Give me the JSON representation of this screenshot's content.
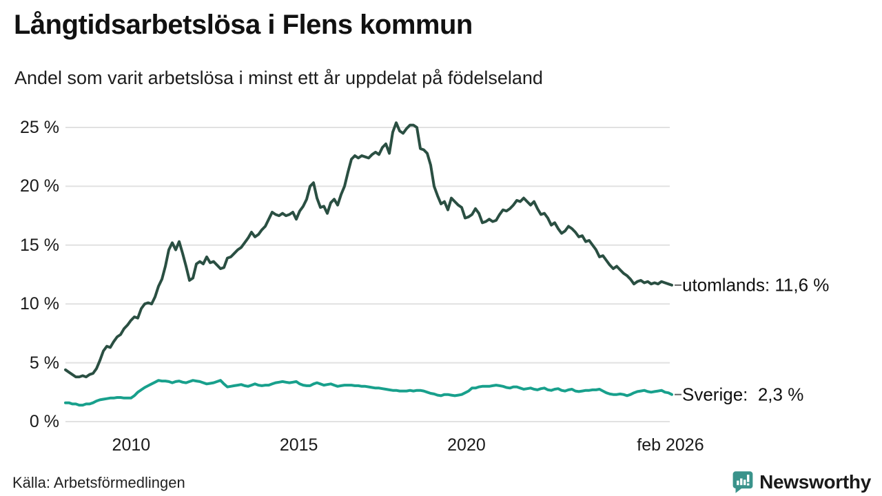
{
  "header": {
    "title": "Långtidsarbetslösa i Flens kommun",
    "subtitle": "Andel som varit arbetslösa i minst ett år uppdelat på födelseland"
  },
  "footer": {
    "source": "Källa: Arbetsförmedlingen",
    "brand_name": "Newsworthy",
    "brand_icon": "bar-chart-speech-bubble-icon",
    "brand_color": "#2F8D86"
  },
  "chart_data": {
    "type": "line",
    "title": "Långtidsarbetslösa i Flens kommun",
    "subtitle": "Andel som varit arbetslösa i minst ett år uppdelat på födelseland",
    "x_start": 2008.04,
    "x_end": 2026.125,
    "xlabel": "",
    "ylabel": "",
    "ylim": [
      0,
      25
    ],
    "grid": true,
    "grid_color": "#e1e1e1",
    "y_ticks": [
      {
        "value": 0,
        "label": "0 %"
      },
      {
        "value": 5,
        "label": "5 %"
      },
      {
        "value": 10,
        "label": "10 %"
      },
      {
        "value": 15,
        "label": "15 %"
      },
      {
        "value": 20,
        "label": "20 %"
      },
      {
        "value": 25,
        "label": "25 %"
      }
    ],
    "x_ticks": [
      {
        "year": 2010,
        "label": "2010"
      },
      {
        "year": 2015,
        "label": "2015"
      },
      {
        "year": 2020,
        "label": "2020"
      },
      {
        "year": 2026.083,
        "label": "feb 2026"
      }
    ],
    "legend_position": "right-end-labels",
    "series": [
      {
        "name": "utomlands",
        "label": "utomlands: 11,6 %",
        "last_value": 11.6,
        "color": "#2A4F42",
        "values": [
          4.4,
          4.2,
          4.0,
          3.8,
          3.8,
          3.9,
          3.8,
          4.0,
          4.1,
          4.5,
          5.2,
          6.0,
          6.4,
          6.3,
          6.8,
          7.2,
          7.4,
          7.9,
          8.2,
          8.6,
          8.9,
          8.8,
          9.6,
          10.0,
          10.1,
          10.0,
          10.6,
          11.5,
          12.1,
          13.2,
          14.6,
          15.2,
          14.6,
          15.3,
          14.3,
          13.2,
          12.0,
          12.2,
          13.4,
          13.6,
          13.4,
          14.0,
          13.5,
          13.6,
          13.3,
          13.0,
          13.1,
          13.9,
          14.0,
          14.3,
          14.6,
          14.8,
          15.2,
          15.6,
          16.1,
          15.7,
          15.9,
          16.3,
          16.6,
          17.2,
          17.8,
          17.6,
          17.5,
          17.7,
          17.5,
          17.6,
          17.8,
          17.2,
          17.9,
          18.3,
          18.9,
          20.0,
          20.3,
          19.0,
          18.2,
          18.3,
          17.7,
          18.6,
          18.9,
          18.4,
          19.3,
          20.0,
          21.2,
          22.3,
          22.6,
          22.4,
          22.6,
          22.5,
          22.4,
          22.7,
          22.9,
          22.7,
          23.3,
          23.6,
          22.8,
          24.6,
          25.4,
          24.7,
          24.5,
          24.9,
          25.2,
          25.2,
          25.0,
          23.2,
          23.1,
          22.8,
          21.8,
          20.0,
          19.2,
          18.5,
          18.7,
          18.0,
          19.0,
          18.7,
          18.4,
          18.2,
          17.3,
          17.4,
          17.6,
          18.1,
          17.7,
          16.9,
          17.0,
          17.2,
          17.0,
          17.1,
          17.6,
          18.0,
          17.9,
          18.1,
          18.4,
          18.8,
          18.7,
          19.0,
          18.7,
          18.4,
          18.7,
          18.1,
          17.6,
          17.7,
          17.3,
          16.7,
          16.9,
          16.4,
          16.0,
          16.2,
          16.6,
          16.4,
          16.1,
          15.7,
          15.8,
          15.3,
          15.4,
          15.0,
          14.6,
          14.0,
          14.1,
          13.7,
          13.3,
          13.0,
          13.2,
          12.9,
          12.6,
          12.4,
          12.1,
          11.7,
          11.9,
          12.0,
          11.8,
          11.9,
          11.7,
          11.8,
          11.7,
          11.9,
          11.8,
          11.7,
          11.6
        ]
      },
      {
        "name": "Sverige",
        "label": "Sverige:  2,3 %",
        "last_value": 2.3,
        "color": "#18A08C",
        "values": [
          1.6,
          1.6,
          1.5,
          1.5,
          1.4,
          1.4,
          1.5,
          1.5,
          1.6,
          1.75,
          1.85,
          1.9,
          1.95,
          2.0,
          2.0,
          2.05,
          2.05,
          2.0,
          2.0,
          2.0,
          2.2,
          2.5,
          2.7,
          2.9,
          3.05,
          3.2,
          3.35,
          3.5,
          3.45,
          3.45,
          3.4,
          3.3,
          3.4,
          3.45,
          3.35,
          3.3,
          3.4,
          3.5,
          3.45,
          3.4,
          3.3,
          3.2,
          3.25,
          3.3,
          3.4,
          3.5,
          3.2,
          2.95,
          3.0,
          3.05,
          3.1,
          3.15,
          3.05,
          3.0,
          3.1,
          3.2,
          3.1,
          3.05,
          3.1,
          3.1,
          3.2,
          3.3,
          3.35,
          3.4,
          3.35,
          3.3,
          3.35,
          3.4,
          3.2,
          3.1,
          3.05,
          3.05,
          3.2,
          3.3,
          3.2,
          3.1,
          3.15,
          3.2,
          3.1,
          3.0,
          3.05,
          3.1,
          3.1,
          3.1,
          3.05,
          3.05,
          3.0,
          3.0,
          2.95,
          2.9,
          2.85,
          2.85,
          2.8,
          2.75,
          2.7,
          2.65,
          2.65,
          2.6,
          2.6,
          2.6,
          2.65,
          2.6,
          2.65,
          2.65,
          2.6,
          2.5,
          2.4,
          2.35,
          2.25,
          2.2,
          2.3,
          2.3,
          2.25,
          2.2,
          2.25,
          2.3,
          2.45,
          2.6,
          2.85,
          2.85,
          2.95,
          3.0,
          3.0,
          3.0,
          3.05,
          3.1,
          3.05,
          3.0,
          2.9,
          2.85,
          2.95,
          2.95,
          2.85,
          2.75,
          2.8,
          2.85,
          2.75,
          2.7,
          2.8,
          2.85,
          2.7,
          2.65,
          2.75,
          2.8,
          2.65,
          2.6,
          2.7,
          2.75,
          2.6,
          2.55,
          2.6,
          2.65,
          2.65,
          2.7,
          2.7,
          2.75,
          2.6,
          2.45,
          2.35,
          2.3,
          2.3,
          2.35,
          2.3,
          2.2,
          2.3,
          2.45,
          2.55,
          2.6,
          2.65,
          2.55,
          2.5,
          2.55,
          2.6,
          2.65,
          2.5,
          2.45,
          2.3
        ]
      }
    ]
  }
}
